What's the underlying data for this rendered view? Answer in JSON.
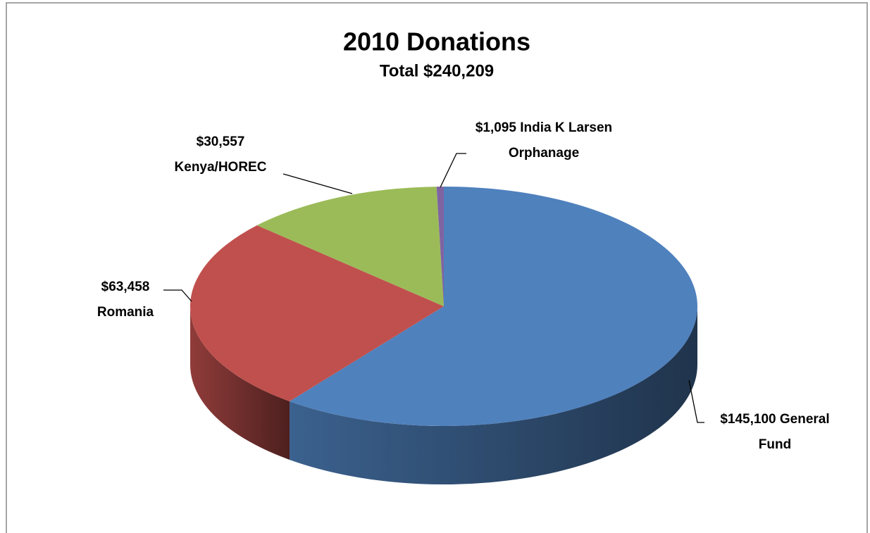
{
  "chart_data": {
    "type": "pie3d",
    "title": "2010 Donations",
    "subtitle": "Total  $240,209",
    "categories": [
      "General Fund",
      "Romania",
      "Kenya/HOREC",
      "India K Larsen Orphanage"
    ],
    "values": [
      145100,
      63458,
      30557,
      1095
    ],
    "value_labels": [
      "$145,100",
      "$63,458",
      "$30,557",
      "$1,095"
    ],
    "colors": [
      "#4f81bd",
      "#c0504d",
      "#9bbb59",
      "#8064a2"
    ]
  }
}
